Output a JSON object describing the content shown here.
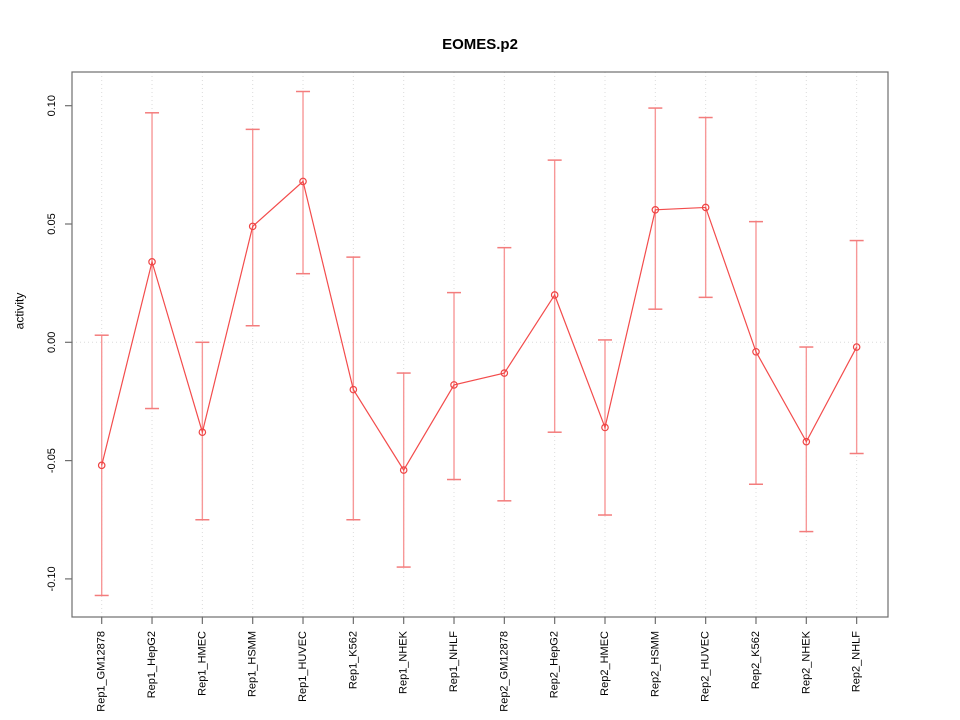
{
  "chart_data": {
    "type": "scatter",
    "title": "EOMES.p2",
    "xlabel": "",
    "ylabel": "activity",
    "ylim": [
      -0.116,
      0.114
    ],
    "yticks": [
      0.1,
      0.05,
      0.0,
      -0.05,
      -0.1
    ],
    "ytick_labels": [
      "0.10",
      "0.05",
      "0.00",
      "-0.05",
      "-0.10"
    ],
    "grid": "vertical dotted gridline at every category; dotted horizontal line at 0.00 only",
    "legend_position": "none",
    "marker": "open-circle",
    "error_bars": true,
    "categories": [
      "Rep1_GM12878",
      "Rep1_HepG2",
      "Rep1_HMEC",
      "Rep1_HSMM",
      "Rep1_HUVEC",
      "Rep1_K562",
      "Rep1_NHEK",
      "Rep1_NHLF",
      "Rep2_GM12878",
      "Rep2_HepG2",
      "Rep2_HMEC",
      "Rep2_HSMM",
      "Rep2_HUVEC",
      "Rep2_K562",
      "Rep2_NHEK",
      "Rep2_NHLF"
    ],
    "series": [
      {
        "name": "activity",
        "values": [
          -0.052,
          0.034,
          -0.038,
          0.049,
          0.068,
          -0.02,
          -0.054,
          -0.018,
          -0.013,
          0.02,
          -0.036,
          0.056,
          0.057,
          -0.004,
          -0.042,
          -0.002
        ],
        "lower": [
          -0.107,
          -0.028,
          -0.075,
          0.007,
          0.029,
          -0.075,
          -0.095,
          -0.058,
          -0.067,
          -0.038,
          -0.073,
          0.014,
          0.019,
          -0.06,
          -0.08,
          -0.047
        ],
        "upper": [
          0.003,
          0.097,
          0.0,
          0.09,
          0.106,
          0.036,
          -0.013,
          0.021,
          0.04,
          0.077,
          0.001,
          0.099,
          0.095,
          0.051,
          -0.002,
          0.043
        ]
      }
    ],
    "colors": {
      "line": "#F34C4C",
      "point": "#EE4444",
      "error_bar": "#F79898",
      "error_cap": "#F37C7C",
      "grid": "#DCDCDC",
      "frame": "#6E6E6E",
      "text": "#000000",
      "background": "#FFFFFF"
    }
  }
}
